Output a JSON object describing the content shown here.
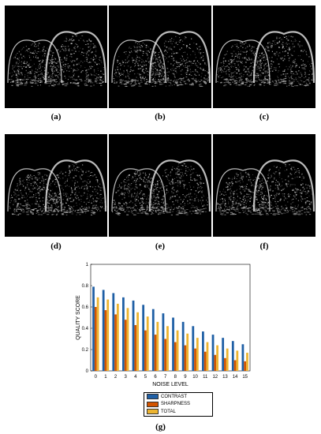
{
  "panels": [
    {
      "label": "(a)"
    },
    {
      "label": "(b)"
    },
    {
      "label": "(c)"
    },
    {
      "label": "(d)"
    },
    {
      "label": "(e)"
    },
    {
      "label": "(f)"
    }
  ],
  "caption_g": "(g)",
  "colors": {
    "contrast": "#1f5fa5",
    "sharpness": "#d35400",
    "total": "#ecb430",
    "tissue": "#c8c8c8"
  },
  "chart_data": {
    "type": "bar",
    "categories": [
      "0",
      "1",
      "2",
      "3",
      "4",
      "5",
      "6",
      "7",
      "8",
      "9",
      "10",
      "11",
      "12",
      "13",
      "14",
      "15"
    ],
    "series": [
      {
        "name": "CONTRAST",
        "values": [
          0.79,
          0.76,
          0.73,
          0.69,
          0.66,
          0.62,
          0.58,
          0.54,
          0.5,
          0.46,
          0.42,
          0.37,
          0.34,
          0.31,
          0.28,
          0.25
        ]
      },
      {
        "name": "SHARPNESS",
        "values": [
          0.6,
          0.57,
          0.53,
          0.48,
          0.43,
          0.38,
          0.34,
          0.3,
          0.27,
          0.24,
          0.21,
          0.18,
          0.15,
          0.12,
          0.1,
          0.09
        ]
      },
      {
        "name": "TOTAL",
        "values": [
          0.69,
          0.67,
          0.63,
          0.59,
          0.55,
          0.51,
          0.46,
          0.42,
          0.38,
          0.35,
          0.31,
          0.27,
          0.24,
          0.21,
          0.19,
          0.17
        ]
      }
    ],
    "xlabel": "NOISE LEVEL",
    "ylabel": "QUALITY SCORE",
    "ylim": [
      0,
      1
    ],
    "yticks": [
      "0",
      "0.2",
      "0.4",
      "0.6",
      "0.8",
      "1"
    ],
    "legend_position": "bottom-outside"
  }
}
